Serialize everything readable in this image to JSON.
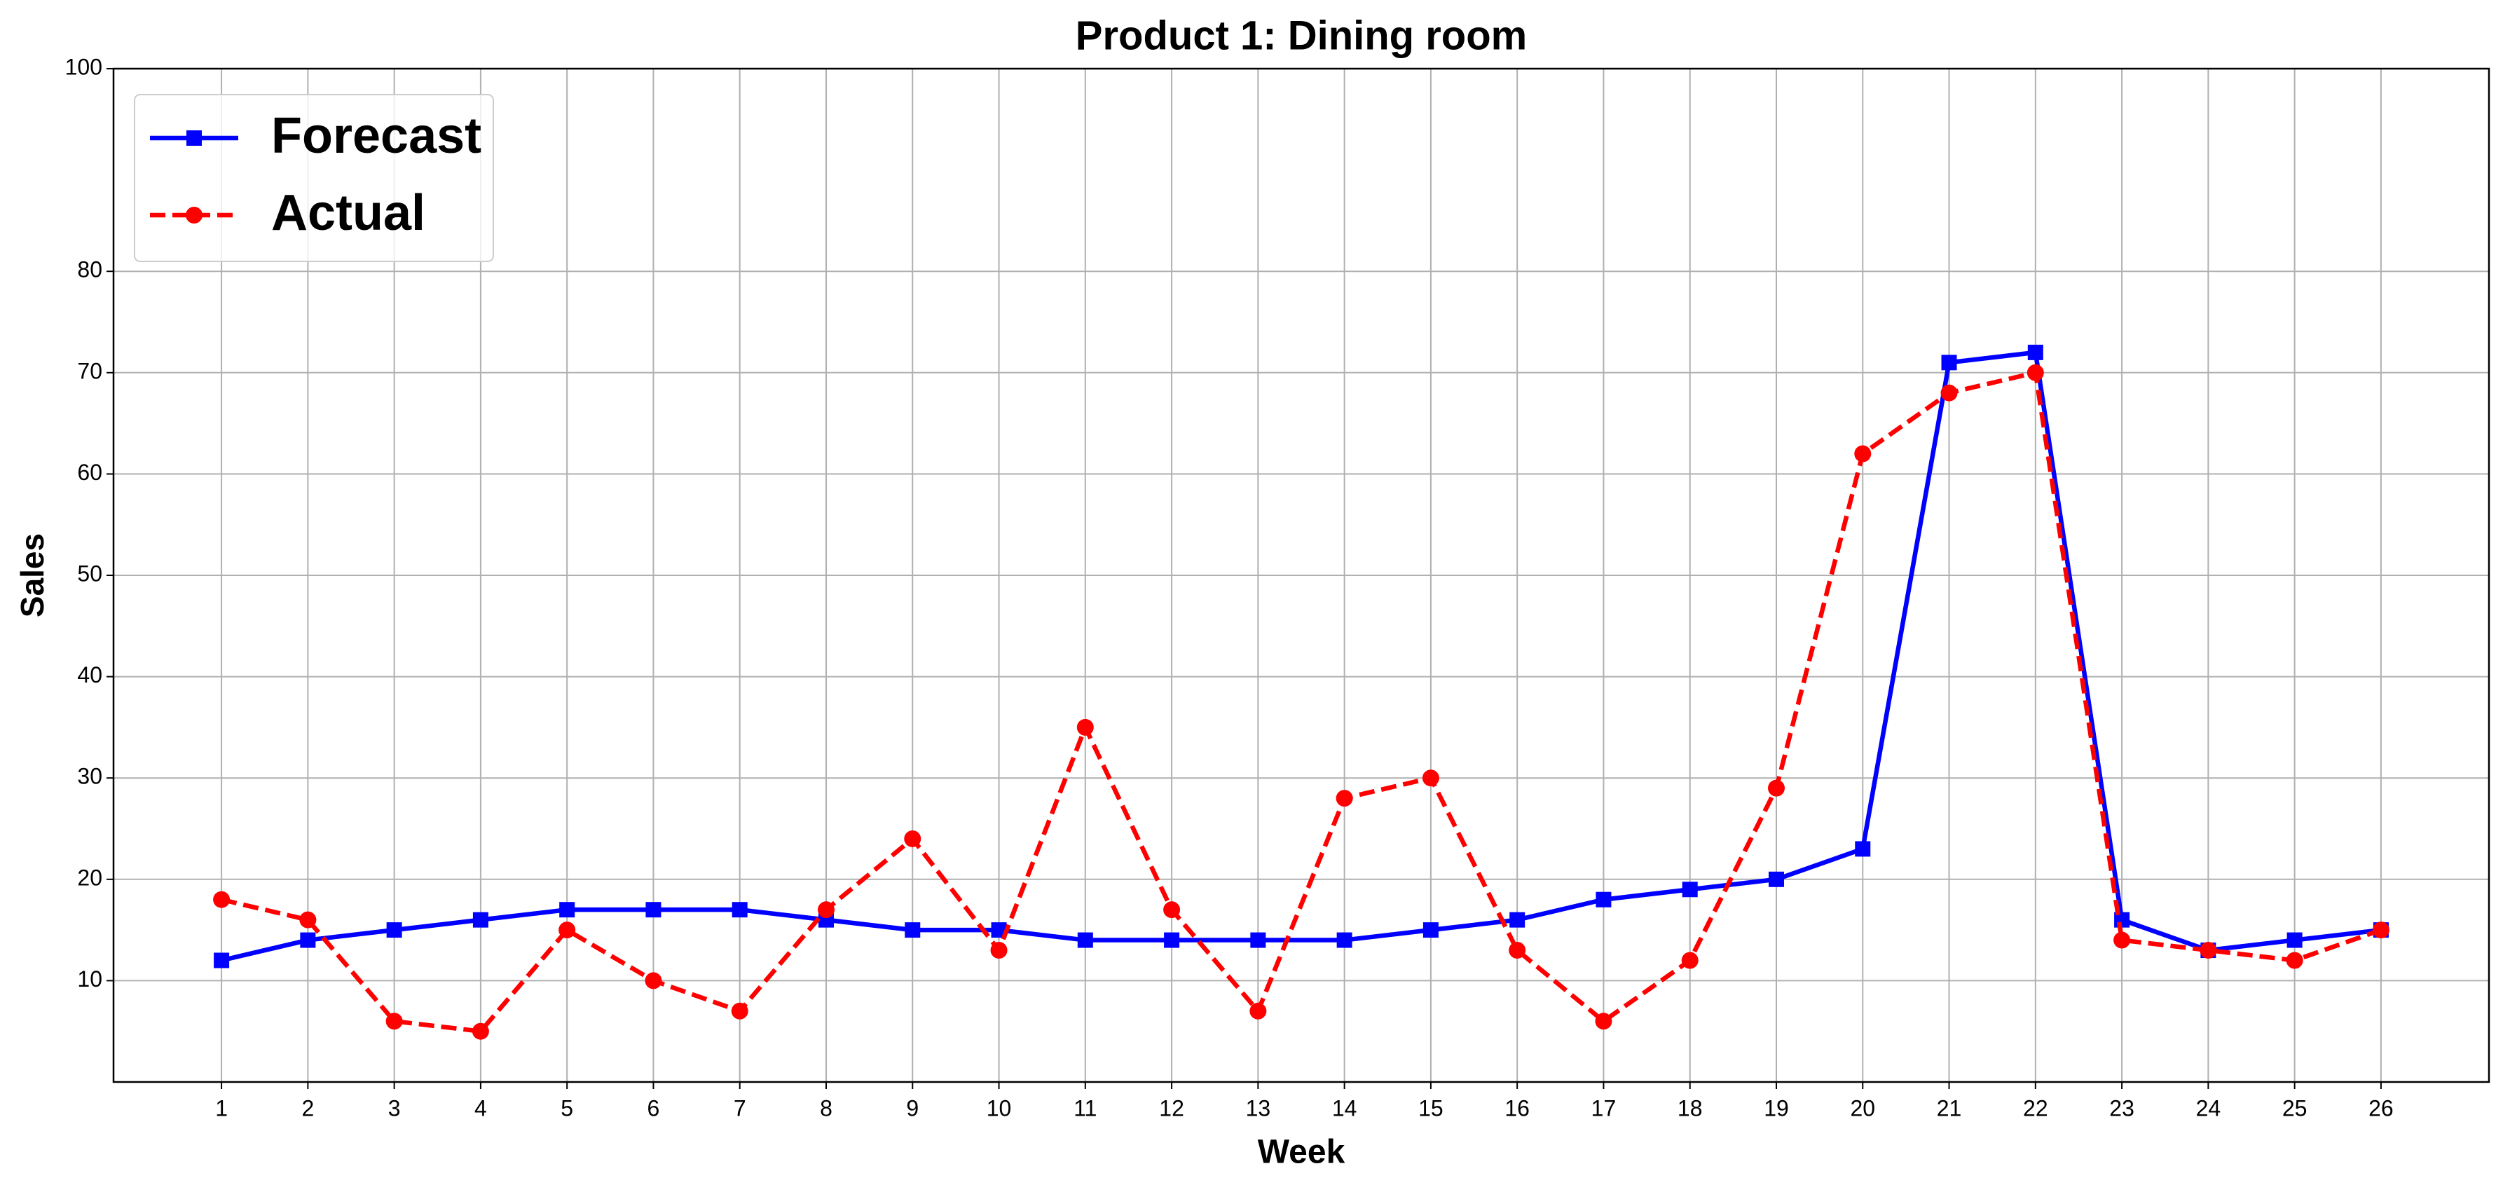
{
  "chart_data": {
    "type": "line",
    "title": "Product 1: Dining room",
    "x_label": "Week",
    "y_label": "Sales",
    "x": [
      1,
      2,
      3,
      4,
      5,
      6,
      7,
      8,
      9,
      10,
      11,
      12,
      13,
      14,
      15,
      16,
      17,
      18,
      19,
      20,
      21,
      22,
      23,
      24,
      25,
      26
    ],
    "series": [
      {
        "name": "Forecast",
        "color": "#0000ff",
        "line_style": "solid",
        "marker": "square",
        "values": [
          12,
          14,
          15,
          16,
          17,
          17,
          17,
          16,
          15,
          15,
          14,
          14,
          14,
          14,
          15,
          16,
          18,
          19,
          20,
          23,
          71,
          72,
          16,
          13,
          14,
          15
        ]
      },
      {
        "name": "Actual",
        "color": "#ff0000",
        "line_style": "dashed",
        "marker": "circle",
        "values": [
          18,
          16,
          6,
          5,
          15,
          10,
          7,
          17,
          24,
          13,
          35,
          17,
          7,
          28,
          30,
          13,
          6,
          12,
          29,
          62,
          68,
          70,
          14,
          13,
          12,
          15
        ]
      }
    ],
    "xlim": [
      -0.25,
      27.25
    ],
    "xticks": [
      1,
      2,
      3,
      4,
      5,
      6,
      7,
      8,
      9,
      10,
      11,
      12,
      13,
      14,
      15,
      16,
      17,
      18,
      19,
      20,
      21,
      22,
      23,
      24,
      25,
      26
    ],
    "ylim": [
      0,
      100
    ],
    "yticks": [
      10,
      20,
      30,
      40,
      50,
      60,
      70,
      80,
      100
    ],
    "grid": true,
    "legend_position": "upper left"
  }
}
